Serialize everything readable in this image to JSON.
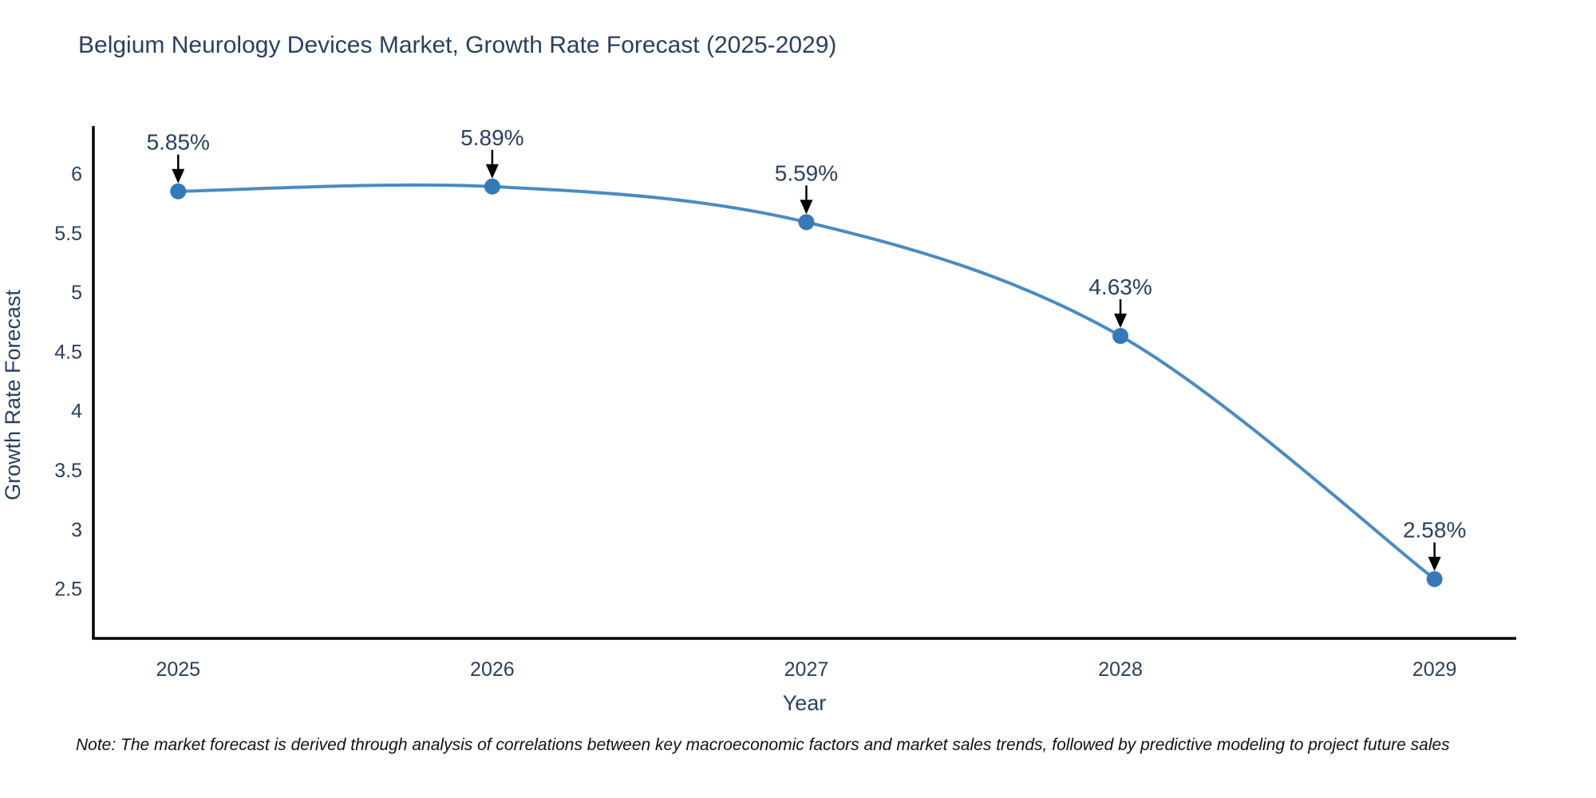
{
  "header": {
    "title": "Belgium Neurology Devices Market, Growth Rate Forecast (2025-2029)"
  },
  "chart_data": {
    "type": "line",
    "title": "Belgium Neurology Devices Market, Growth Rate Forecast (2025-2029)",
    "x": [
      2025,
      2026,
      2027,
      2028,
      2029
    ],
    "values": [
      5.85,
      5.89,
      5.59,
      4.63,
      2.58
    ],
    "point_labels": [
      "5.85%",
      "5.89%",
      "5.59%",
      "4.63%",
      "2.58%"
    ],
    "xlabel": "Year",
    "ylabel": "Growth Rate Forecast",
    "xticks": [
      2025,
      2026,
      2027,
      2028,
      2029
    ],
    "yticks": [
      2.5,
      3,
      3.5,
      4,
      4.5,
      5,
      5.5,
      6
    ],
    "xlim": [
      2024.73,
      2029.26
    ],
    "ylim": [
      2.08,
      6.4
    ],
    "line_shape": "spline",
    "grid": false,
    "legend": "none",
    "colors": {
      "line": "#4a8bc2",
      "marker": "#3679b8",
      "annotation_arrow": "#000000",
      "axis": "#000000",
      "text": "#2a3f5f"
    }
  },
  "note": {
    "text": "Note: The market forecast is derived through analysis of correlations between key macroeconomic factors and market sales trends, followed by predictive modeling to project future sales"
  }
}
